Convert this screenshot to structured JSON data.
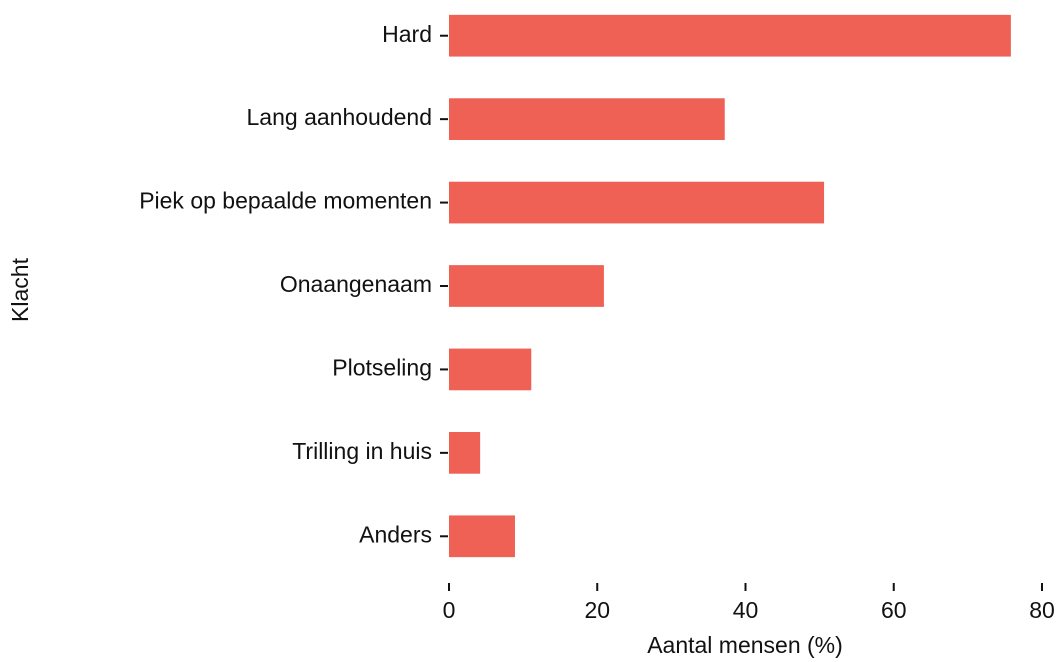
{
  "chart_data": {
    "type": "barh",
    "categories": [
      "Hard",
      "Lang aanhoudend",
      "Piek op bepaalde momenten",
      "Onaangenaam",
      "Plotseling",
      "Trilling in huis",
      "Anders"
    ],
    "values": [
      75.8,
      37.2,
      50.6,
      20.9,
      11.1,
      4.2,
      8.9
    ],
    "color": "#ef6155",
    "xlabel": "Aantal mensen (%)",
    "ylabel": "Klacht",
    "xlim": [
      0,
      80
    ],
    "xticks": [
      0,
      20,
      40,
      60,
      80
    ],
    "grid": false
  }
}
